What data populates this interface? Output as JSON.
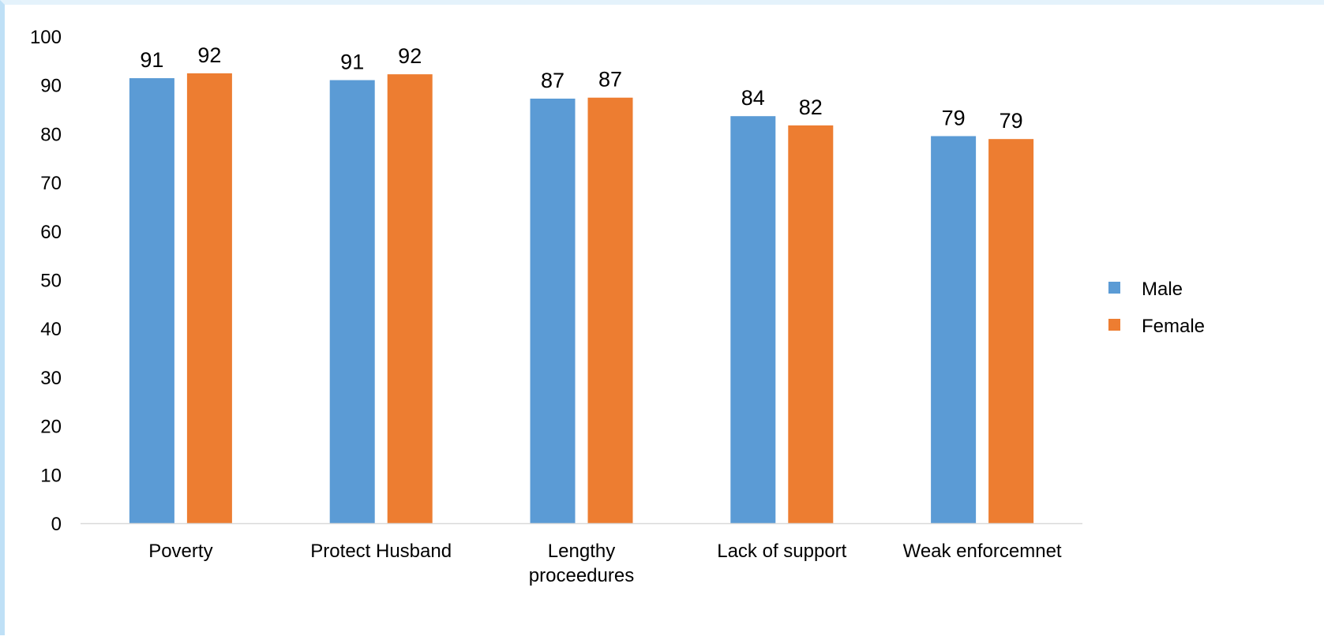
{
  "chart_data": {
    "type": "bar",
    "title": "",
    "xlabel": "",
    "ylabel": "",
    "ylim": [
      0,
      100
    ],
    "yticks": [
      0,
      10,
      20,
      30,
      40,
      50,
      60,
      70,
      80,
      90,
      100
    ],
    "grid": false,
    "legend_position": "right",
    "categories": [
      [
        "Poverty"
      ],
      [
        "Protect Husband"
      ],
      [
        "Lengthy",
        "proceedures"
      ],
      [
        "Lack of support"
      ],
      [
        "Weak enforcemnet"
      ]
    ],
    "series": [
      {
        "name": "Male",
        "color": "#5b9bd5",
        "values": [
          91.4,
          91.0,
          87.2,
          83.6,
          79.5
        ],
        "labels": [
          "91",
          "91",
          "87",
          "84",
          "79"
        ]
      },
      {
        "name": "Female",
        "color": "#ed7d31",
        "values": [
          92.4,
          92.2,
          87.4,
          81.7,
          78.9
        ],
        "labels": [
          "92",
          "92",
          "87",
          "82",
          "79"
        ]
      }
    ]
  }
}
